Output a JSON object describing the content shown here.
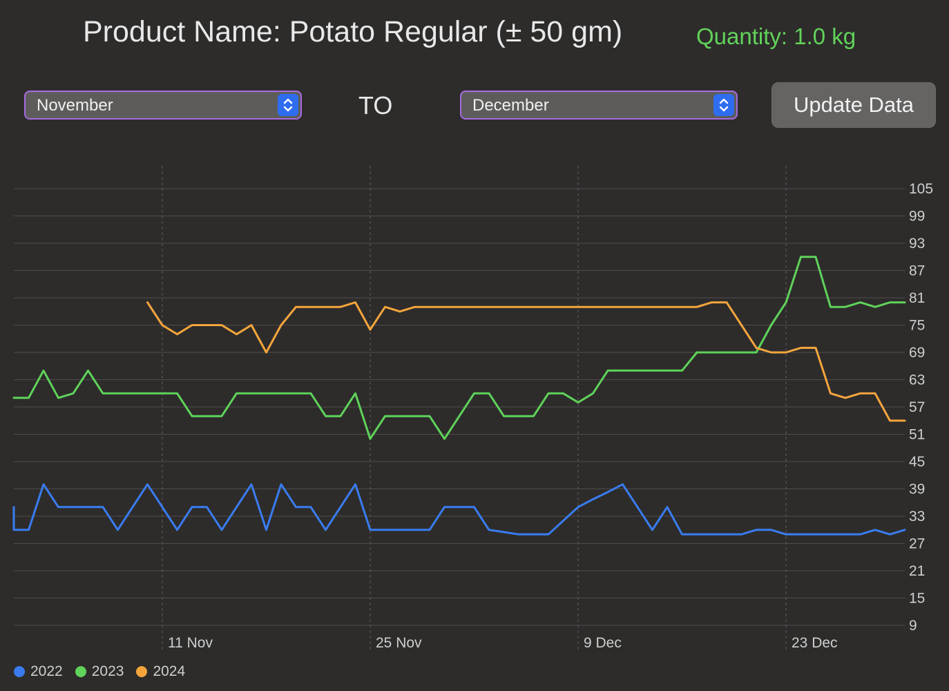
{
  "header": {
    "title": "Product Name: Potato Regular (± 50 gm)",
    "quantity": "Quantity: 1.0 kg"
  },
  "controls": {
    "from_month": "November",
    "to_label": "TO",
    "to_month": "December",
    "update_label": "Update Data"
  },
  "colors": {
    "accent_border": "#a76ae0",
    "stepper": "#2f6df0",
    "quantity_text": "#62d35a"
  },
  "chart_data": {
    "type": "line",
    "x_axis": {
      "type": "date",
      "start": "2024-11-01",
      "end": "2024-12-31",
      "ticks": [
        {
          "date": "2024-11-11",
          "label": "11 Nov"
        },
        {
          "date": "2024-11-25",
          "label": "25 Nov"
        },
        {
          "date": "2024-12-09",
          "label": "9 Dec"
        },
        {
          "date": "2024-12-23",
          "label": "23 Dec"
        }
      ]
    },
    "y_axis": {
      "ylim": [
        9,
        105
      ],
      "ticks": [
        9,
        15,
        21,
        27,
        33,
        39,
        45,
        51,
        57,
        63,
        69,
        75,
        81,
        87,
        93,
        99,
        105
      ],
      "position": "right"
    },
    "grid": true,
    "legend": "bottom-left",
    "series": [
      {
        "name": "2022",
        "color": "#3a7cf0",
        "points": [
          [
            "2024-11-01",
            35
          ],
          [
            "2024-11-01",
            30
          ],
          [
            "2024-11-02",
            30
          ],
          [
            "2024-11-03",
            40
          ],
          [
            "2024-11-04",
            35
          ],
          [
            "2024-11-05",
            35
          ],
          [
            "2024-11-06",
            35
          ],
          [
            "2024-11-07",
            35
          ],
          [
            "2024-11-08",
            30
          ],
          [
            "2024-11-09",
            35
          ],
          [
            "2024-11-10",
            40
          ],
          [
            "2024-11-11",
            35
          ],
          [
            "2024-11-12",
            30
          ],
          [
            "2024-11-13",
            35
          ],
          [
            "2024-11-14",
            35
          ],
          [
            "2024-11-15",
            30
          ],
          [
            "2024-11-16",
            35
          ],
          [
            "2024-11-17",
            40
          ],
          [
            "2024-11-18",
            30
          ],
          [
            "2024-11-19",
            40
          ],
          [
            "2024-11-20",
            35
          ],
          [
            "2024-11-21",
            35
          ],
          [
            "2024-11-22",
            30
          ],
          [
            "2024-11-23",
            35
          ],
          [
            "2024-11-24",
            40
          ],
          [
            "2024-11-25",
            30
          ],
          [
            "2024-11-26",
            30
          ],
          [
            "2024-11-27",
            30
          ],
          [
            "2024-11-28",
            30
          ],
          [
            "2024-11-29",
            30
          ],
          [
            "2024-11-30",
            35
          ],
          [
            "2024-12-01",
            35
          ],
          [
            "2024-12-02",
            35
          ],
          [
            "2024-12-03",
            30
          ],
          [
            "2024-12-04",
            29.5
          ],
          [
            "2024-12-05",
            29
          ],
          [
            "2024-12-06",
            29
          ],
          [
            "2024-12-07",
            29
          ],
          [
            "2024-12-08",
            32
          ],
          [
            "2024-12-09",
            35
          ],
          [
            "2024-12-10",
            36.7
          ],
          [
            "2024-12-11",
            38.3
          ],
          [
            "2024-12-12",
            40
          ],
          [
            "2024-12-13",
            35
          ],
          [
            "2024-12-14",
            30
          ],
          [
            "2024-12-15",
            35
          ],
          [
            "2024-12-16",
            29
          ],
          [
            "2024-12-17",
            29
          ],
          [
            "2024-12-18",
            29
          ],
          [
            "2024-12-19",
            29
          ],
          [
            "2024-12-20",
            29
          ],
          [
            "2024-12-21",
            30
          ],
          [
            "2024-12-22",
            30
          ],
          [
            "2024-12-23",
            29
          ],
          [
            "2024-12-24",
            29
          ],
          [
            "2024-12-25",
            29
          ],
          [
            "2024-12-26",
            29
          ],
          [
            "2024-12-27",
            29
          ],
          [
            "2024-12-28",
            29
          ],
          [
            "2024-12-29",
            30
          ],
          [
            "2024-12-30",
            29
          ],
          [
            "2024-12-31",
            30
          ]
        ]
      },
      {
        "name": "2023",
        "color": "#5fd35a",
        "points": [
          [
            "2024-11-01",
            59
          ],
          [
            "2024-11-02",
            59
          ],
          [
            "2024-11-03",
            65
          ],
          [
            "2024-11-04",
            59
          ],
          [
            "2024-11-05",
            60
          ],
          [
            "2024-11-06",
            65
          ],
          [
            "2024-11-07",
            60
          ],
          [
            "2024-11-08",
            60
          ],
          [
            "2024-11-09",
            60
          ],
          [
            "2024-11-10",
            60
          ],
          [
            "2024-11-11",
            60
          ],
          [
            "2024-11-12",
            60
          ],
          [
            "2024-11-13",
            55
          ],
          [
            "2024-11-14",
            55
          ],
          [
            "2024-11-15",
            55
          ],
          [
            "2024-11-16",
            60
          ],
          [
            "2024-11-17",
            60
          ],
          [
            "2024-11-18",
            60
          ],
          [
            "2024-11-19",
            60
          ],
          [
            "2024-11-20",
            60
          ],
          [
            "2024-11-21",
            60
          ],
          [
            "2024-11-22",
            55
          ],
          [
            "2024-11-23",
            55
          ],
          [
            "2024-11-24",
            60
          ],
          [
            "2024-11-25",
            50
          ],
          [
            "2024-11-26",
            55
          ],
          [
            "2024-11-27",
            55
          ],
          [
            "2024-11-28",
            55
          ],
          [
            "2024-11-29",
            55
          ],
          [
            "2024-11-30",
            50
          ],
          [
            "2024-12-01",
            55
          ],
          [
            "2024-12-02",
            60
          ],
          [
            "2024-12-03",
            60
          ],
          [
            "2024-12-04",
            55
          ],
          [
            "2024-12-05",
            55
          ],
          [
            "2024-12-06",
            55
          ],
          [
            "2024-12-07",
            60
          ],
          [
            "2024-12-08",
            60
          ],
          [
            "2024-12-09",
            58
          ],
          [
            "2024-12-10",
            60
          ],
          [
            "2024-12-11",
            65
          ],
          [
            "2024-12-12",
            65
          ],
          [
            "2024-12-13",
            65
          ],
          [
            "2024-12-14",
            65
          ],
          [
            "2024-12-15",
            65
          ],
          [
            "2024-12-16",
            65
          ],
          [
            "2024-12-17",
            69
          ],
          [
            "2024-12-18",
            69
          ],
          [
            "2024-12-19",
            69
          ],
          [
            "2024-12-20",
            69
          ],
          [
            "2024-12-21",
            69
          ],
          [
            "2024-12-22",
            75
          ],
          [
            "2024-12-23",
            80
          ],
          [
            "2024-12-24",
            90
          ],
          [
            "2024-12-25",
            90
          ],
          [
            "2024-12-26",
            79
          ],
          [
            "2024-12-27",
            79
          ],
          [
            "2024-12-28",
            80
          ],
          [
            "2024-12-29",
            79
          ],
          [
            "2024-12-30",
            80
          ],
          [
            "2024-12-31",
            80
          ]
        ]
      },
      {
        "name": "2024",
        "color": "#f5a53c",
        "points": [
          [
            "2024-11-10",
            80
          ],
          [
            "2024-11-11",
            75
          ],
          [
            "2024-11-12",
            73
          ],
          [
            "2024-11-13",
            75
          ],
          [
            "2024-11-14",
            75
          ],
          [
            "2024-11-15",
            75
          ],
          [
            "2024-11-16",
            73
          ],
          [
            "2024-11-17",
            75
          ],
          [
            "2024-11-18",
            69
          ],
          [
            "2024-11-19",
            75
          ],
          [
            "2024-11-20",
            79
          ],
          [
            "2024-11-21",
            79
          ],
          [
            "2024-11-22",
            79
          ],
          [
            "2024-11-23",
            79
          ],
          [
            "2024-11-24",
            80
          ],
          [
            "2024-11-25",
            74
          ],
          [
            "2024-11-26",
            79
          ],
          [
            "2024-11-27",
            78
          ],
          [
            "2024-11-28",
            79
          ],
          [
            "2024-11-29",
            79
          ],
          [
            "2024-11-30",
            79
          ],
          [
            "2024-12-01",
            79
          ],
          [
            "2024-12-02",
            79
          ],
          [
            "2024-12-03",
            79
          ],
          [
            "2024-12-04",
            79
          ],
          [
            "2024-12-05",
            79
          ],
          [
            "2024-12-06",
            79
          ],
          [
            "2024-12-07",
            79
          ],
          [
            "2024-12-08",
            79
          ],
          [
            "2024-12-09",
            79
          ],
          [
            "2024-12-10",
            79
          ],
          [
            "2024-12-11",
            79
          ],
          [
            "2024-12-12",
            79
          ],
          [
            "2024-12-13",
            79
          ],
          [
            "2024-12-14",
            79
          ],
          [
            "2024-12-15",
            79
          ],
          [
            "2024-12-16",
            79
          ],
          [
            "2024-12-17",
            79
          ],
          [
            "2024-12-18",
            80
          ],
          [
            "2024-12-19",
            80
          ],
          [
            "2024-12-20",
            75
          ],
          [
            "2024-12-21",
            70
          ],
          [
            "2024-12-22",
            69
          ],
          [
            "2024-12-23",
            69
          ],
          [
            "2024-12-24",
            70
          ],
          [
            "2024-12-25",
            70
          ],
          [
            "2024-12-26",
            60
          ],
          [
            "2024-12-27",
            59
          ],
          [
            "2024-12-28",
            60
          ],
          [
            "2024-12-29",
            60
          ],
          [
            "2024-12-30",
            54
          ],
          [
            "2024-12-31",
            54
          ]
        ]
      }
    ]
  }
}
